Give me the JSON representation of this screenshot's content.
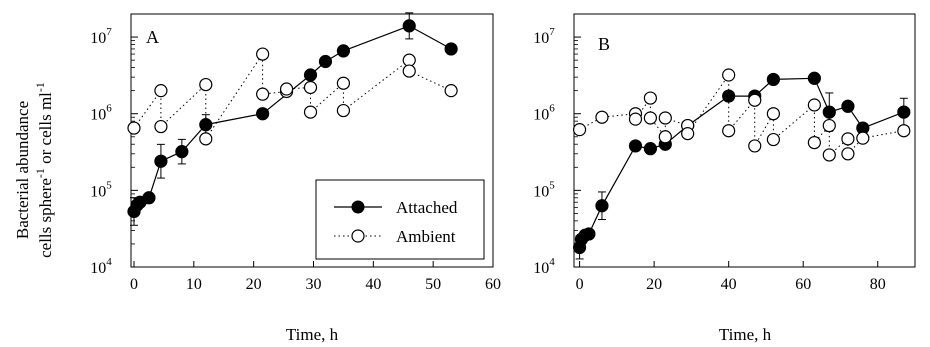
{
  "figure": {
    "ylabel_line1": "Bacterial abundance",
    "ylabel_line2_a": "cells sphere",
    "ylabel_line2_sup1": "-1",
    "ylabel_line2_b": " or cells ml",
    "ylabel_line2_sup2": "-1",
    "xlabel": "Time, h",
    "legend": {
      "attached": "Attached",
      "ambient": "Ambient"
    }
  },
  "chart_data": [
    {
      "type": "line",
      "panel_label": "A",
      "xlabel": "Time, h",
      "ylabel": "Bacterial abundance cells sphere-1 or cells ml-1",
      "xlim": [
        -0.5,
        60
      ],
      "ylim": [
        10000,
        20000000
      ],
      "yscale": "log",
      "xticks": [
        0,
        10,
        20,
        30,
        40,
        50,
        60
      ],
      "yticks": [
        {
          "value": 10000,
          "base": "10",
          "exp": "4"
        },
        {
          "value": 100000,
          "base": "10",
          "exp": "5"
        },
        {
          "value": 1000000,
          "base": "10",
          "exp": "6"
        },
        {
          "value": 10000000,
          "base": "10",
          "exp": "7"
        }
      ],
      "legend_position": "lower-right",
      "series": [
        {
          "name": "Attached",
          "marker": "filled-circle",
          "line": "solid",
          "x": [
            0,
            0.5,
            1,
            2.5,
            4.5,
            8,
            12,
            21.5,
            29.5,
            32,
            35,
            46,
            53
          ],
          "y": [
            53000,
            64000,
            70000,
            80000,
            240000,
            320000,
            720000,
            1000000,
            3200000,
            4800000,
            6600000,
            14000000,
            7000000
          ]
        },
        {
          "name": "Ambient",
          "marker": "open-circle",
          "line": "dotted",
          "x": [
            0,
            4.5,
            4.5,
            12,
            12,
            21.5,
            21.5,
            25.5,
            25.5,
            29.5,
            29.5,
            35,
            35,
            46,
            46,
            53
          ],
          "y": [
            650000,
            2000000,
            680000,
            2400000,
            470000,
            6000000,
            1800000,
            1950000,
            2100000,
            2200000,
            1050000,
            2500000,
            1100000,
            5000000,
            3600000,
            2000000
          ]
        }
      ]
    },
    {
      "type": "line",
      "panel_label": "B",
      "xlabel": "Time, h",
      "ylabel": "",
      "xlim": [
        -1.5,
        90
      ],
      "ylim": [
        10000,
        20000000
      ],
      "yscale": "log",
      "xticks": [
        0,
        20,
        40,
        60,
        80
      ],
      "yticks": [
        {
          "value": 10000,
          "base": "10",
          "exp": "4"
        },
        {
          "value": 100000,
          "base": "10",
          "exp": "5"
        },
        {
          "value": 1000000,
          "base": "10",
          "exp": "6"
        },
        {
          "value": 10000000,
          "base": "10",
          "exp": "7"
        }
      ],
      "series": [
        {
          "name": "Attached",
          "marker": "filled-circle",
          "line": "solid",
          "x": [
            0,
            0.5,
            1.5,
            2.5,
            6,
            15,
            19,
            23,
            29,
            40,
            47,
            52,
            63,
            67,
            72,
            76,
            87
          ],
          "y": [
            18000,
            23000,
            26000,
            27000,
            63000,
            380000,
            350000,
            400000,
            700000,
            1700000,
            1700000,
            2800000,
            2900000,
            1050000,
            1250000,
            650000,
            1050000
          ]
        },
        {
          "name": "Ambient",
          "marker": "open-circle",
          "line": "dotted",
          "x": [
            0,
            6,
            15,
            15,
            19,
            19,
            23,
            23,
            29,
            29,
            40,
            40,
            47,
            47,
            52,
            52,
            63,
            63,
            67,
            67,
            72,
            72,
            76,
            87
          ],
          "y": [
            620000,
            900000,
            1000000,
            850000,
            1600000,
            880000,
            500000,
            880000,
            700000,
            550000,
            3200000,
            600000,
            1500000,
            380000,
            1000000,
            460000,
            1300000,
            420000,
            700000,
            290000,
            470000,
            300000,
            480000,
            600000
          ]
        }
      ]
    }
  ]
}
